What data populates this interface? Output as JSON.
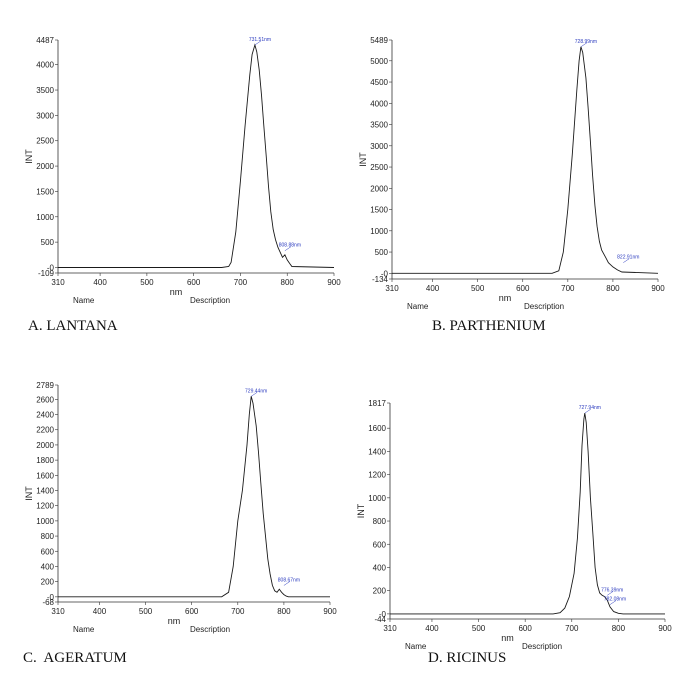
{
  "colors": {
    "line": "#1a1a1a",
    "annotation": "#2b3bbf",
    "axis": "#333333"
  },
  "chart_data": [
    {
      "type": "line",
      "caption": "A. LANTANA",
      "xlabel": "nm",
      "ylabel": "INT",
      "xlim": [
        310,
        900
      ],
      "ylim": [
        -109,
        4487
      ],
      "xticks": [
        "310",
        "400",
        "500",
        "600",
        "700",
        "800",
        "900"
      ],
      "yticks": [
        "-109",
        "-0",
        "500",
        "1000",
        "1500",
        "2000",
        "2500",
        "3000",
        "3500",
        "4000",
        "4487"
      ],
      "footer": [
        "Name",
        "Description"
      ],
      "annotations": [
        {
          "text": "731.51nm",
          "x": 731,
          "y": 4390
        },
        {
          "text": "808.88nm",
          "x": 795,
          "y": 330
        }
      ],
      "x": [
        310,
        660,
        675,
        680,
        690,
        700,
        710,
        720,
        725,
        731,
        735,
        740,
        745,
        750,
        755,
        760,
        765,
        770,
        775,
        780,
        785,
        790,
        795,
        800,
        805,
        810,
        900
      ],
      "y": [
        0,
        0,
        20,
        100,
        700,
        1700,
        2800,
        3800,
        4200,
        4390,
        4250,
        3900,
        3400,
        2800,
        2200,
        1600,
        1100,
        750,
        550,
        400,
        300,
        200,
        250,
        150,
        80,
        20,
        0
      ]
    },
    {
      "type": "line",
      "caption": "B. PARTHENIUM",
      "xlabel": "nm",
      "ylabel": "INT",
      "xlim": [
        310,
        900
      ],
      "ylim": [
        -134,
        5489
      ],
      "xticks": [
        "310",
        "400",
        "500",
        "600",
        "700",
        "800",
        "900"
      ],
      "yticks": [
        "-134",
        "-0",
        "500",
        "1000",
        "1500",
        "2000",
        "2500",
        "3000",
        "3500",
        "4000",
        "4500",
        "5000",
        "5489"
      ],
      "footer": [
        "Name",
        "Description"
      ],
      "annotations": [
        {
          "text": "728.99nm",
          "x": 729,
          "y": 5330
        },
        {
          "text": "822.91nm",
          "x": 823,
          "y": 250
        }
      ],
      "x": [
        310,
        665,
        680,
        690,
        700,
        710,
        720,
        725,
        729,
        733,
        740,
        745,
        750,
        755,
        760,
        765,
        770,
        775,
        780,
        785,
        790,
        800,
        810,
        820,
        900
      ],
      "y": [
        0,
        0,
        60,
        500,
        1500,
        2800,
        4300,
        5000,
        5330,
        5200,
        4600,
        3900,
        3100,
        2300,
        1600,
        1100,
        750,
        550,
        450,
        350,
        250,
        150,
        80,
        30,
        0
      ]
    },
    {
      "type": "line",
      "caption": "C.  AGERATUM",
      "xlabel": "nm",
      "ylabel": "INT",
      "xlim": [
        310,
        900
      ],
      "ylim": [
        -68,
        2789
      ],
      "xticks": [
        "310",
        "400",
        "500",
        "600",
        "700",
        "800",
        "900"
      ],
      "yticks": [
        "-68",
        "-0",
        "200",
        "400",
        "600",
        "800",
        "1000",
        "1200",
        "1400",
        "1600",
        "1800",
        "2000",
        "2200",
        "2400",
        "2600",
        "2789"
      ],
      "footer": [
        "Name",
        "Description"
      ],
      "annotations": [
        {
          "text": "729.44nm",
          "x": 729,
          "y": 2640
        },
        {
          "text": "808.67nm",
          "x": 800,
          "y": 150
        }
      ],
      "x": [
        310,
        665,
        680,
        690,
        700,
        710,
        720,
        725,
        729,
        733,
        740,
        745,
        750,
        755,
        760,
        765,
        770,
        775,
        780,
        785,
        790,
        795,
        800,
        805,
        810,
        900
      ],
      "y": [
        0,
        0,
        60,
        400,
        1000,
        1400,
        2000,
        2400,
        2640,
        2550,
        2250,
        1900,
        1500,
        1100,
        800,
        500,
        300,
        150,
        80,
        60,
        100,
        60,
        30,
        10,
        0,
        0
      ]
    },
    {
      "type": "line",
      "caption": "D. RICINUS",
      "xlabel": "nm",
      "ylabel": "INT",
      "xlim": [
        310,
        900
      ],
      "ylim": [
        -44,
        1817
      ],
      "xticks": [
        "310",
        "400",
        "500",
        "600",
        "700",
        "800",
        "900"
      ],
      "yticks": [
        "-44",
        "-0",
        "200",
        "400",
        "600",
        "800",
        "1000",
        "1200",
        "1400",
        "1600",
        "1817"
      ],
      "footer": [
        "Name",
        "Description"
      ],
      "annotations": [
        {
          "text": "727.94nm",
          "x": 728,
          "y": 1730
        },
        {
          "text": "776.39nm",
          "x": 776,
          "y": 160
        },
        {
          "text": "782.08nm",
          "x": 782,
          "y": 80
        }
      ],
      "x": [
        310,
        660,
        675,
        685,
        695,
        705,
        712,
        718,
        722,
        726,
        728,
        731,
        735,
        740,
        745,
        750,
        755,
        760,
        765,
        770,
        776,
        782,
        790,
        800,
        810,
        900
      ],
      "y": [
        0,
        0,
        10,
        50,
        150,
        350,
        650,
        1050,
        1450,
        1680,
        1730,
        1650,
        1400,
        1000,
        700,
        400,
        250,
        180,
        160,
        150,
        120,
        60,
        20,
        5,
        0,
        0
      ]
    }
  ]
}
